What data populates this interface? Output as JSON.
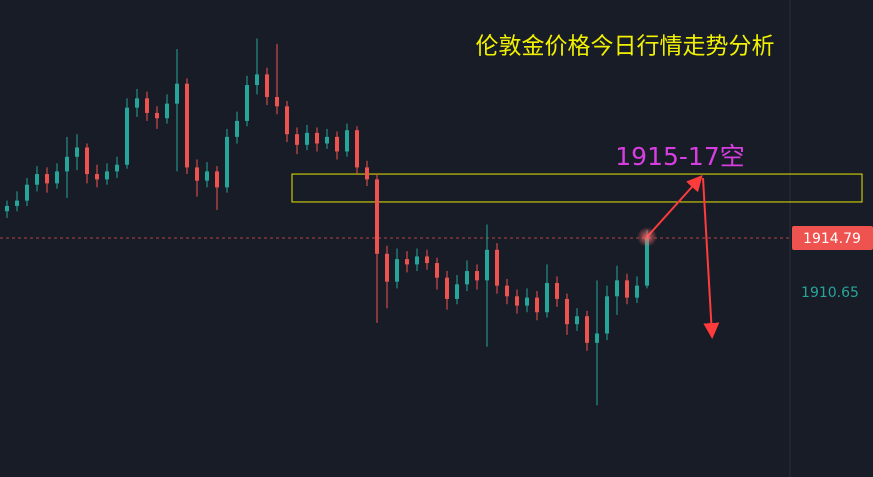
{
  "chart_data": {
    "type": "candlestick",
    "title": "伦敦金价格今日行情走势分析",
    "annotation": "1915-17空",
    "up_color": "#26a69a",
    "down_color": "#ef5350",
    "ylim": [
      1896.8,
      1932.7
    ],
    "last_price": 1914.79,
    "ref_price": 1910.65,
    "zone": [
      1917.5,
      1919.6
    ],
    "open": [
      1916.8,
      1917.2,
      1917.6,
      1918.8,
      1919.6,
      1918.9,
      1919.8,
      1920.9,
      1921.6,
      1919.6,
      1919.2,
      1919.8,
      1920.3,
      1924.6,
      1925.3,
      1924.2,
      1923.8,
      1924.9,
      1926.4,
      1920.1,
      1919.1,
      1919.8,
      1918.6,
      1922.4,
      1923.6,
      1926.3,
      1927.1,
      1925.4,
      1924.7,
      1922.6,
      1921.8,
      1922.7,
      1921.9,
      1922.4,
      1921.3,
      1922.9,
      1920.1,
      1919.2,
      1913.6,
      1911.5,
      1913.2,
      1912.8,
      1913.4,
      1912.9,
      1911.8,
      1910.2,
      1911.3,
      1912.3,
      1911.6,
      1913.9,
      1911.2,
      1910.4,
      1909.7,
      1910.3,
      1909.2,
      1911.4,
      1910.2,
      1908.3,
      1908.9,
      1906.9,
      1907.6,
      1910.4,
      1911.6,
      1910.3,
      1911.2
    ],
    "high": [
      1917.6,
      1918.3,
      1919.3,
      1920.2,
      1920.1,
      1920.4,
      1922.4,
      1922.6,
      1921.9,
      1920.3,
      1920.4,
      1920.9,
      1925.3,
      1926.0,
      1925.8,
      1924.7,
      1925.6,
      1929.0,
      1926.8,
      1920.7,
      1920.5,
      1920.2,
      1923.0,
      1924.3,
      1927.0,
      1929.8,
      1927.6,
      1929.4,
      1925.1,
      1923.1,
      1923.3,
      1923.1,
      1923.0,
      1922.8,
      1923.4,
      1923.2,
      1920.6,
      1919.6,
      1914.2,
      1914.0,
      1913.8,
      1914.0,
      1913.9,
      1913.3,
      1912.3,
      1912.0,
      1913.1,
      1912.8,
      1915.8,
      1914.4,
      1911.7,
      1910.9,
      1911.0,
      1910.8,
      1912.8,
      1911.9,
      1910.6,
      1909.5,
      1909.3,
      1911.6,
      1911.2,
      1912.7,
      1912.1,
      1911.9,
      1915.4
    ],
    "low": [
      1916.3,
      1916.8,
      1917.2,
      1918.3,
      1918.2,
      1918.5,
      1917.8,
      1919.9,
      1918.9,
      1918.6,
      1918.8,
      1919.3,
      1920.0,
      1923.9,
      1923.6,
      1923.0,
      1923.4,
      1919.8,
      1919.6,
      1917.9,
      1918.6,
      1916.9,
      1918.2,
      1921.9,
      1923.2,
      1925.6,
      1924.8,
      1924.1,
      1922.0,
      1921.1,
      1921.4,
      1921.3,
      1921.5,
      1920.7,
      1920.9,
      1919.6,
      1918.7,
      1908.4,
      1909.5,
      1911.0,
      1912.2,
      1912.3,
      1912.4,
      1910.9,
      1909.4,
      1909.8,
      1910.8,
      1910.9,
      1906.6,
      1910.6,
      1909.8,
      1909.1,
      1909.2,
      1908.6,
      1908.8,
      1909.6,
      1907.5,
      1907.8,
      1906.3,
      1902.2,
      1907.1,
      1909.0,
      1909.8,
      1909.9,
      1911.0
    ],
    "close": [
      1917.2,
      1917.6,
      1918.8,
      1919.6,
      1918.9,
      1919.8,
      1920.9,
      1921.6,
      1919.6,
      1919.2,
      1919.8,
      1920.3,
      1924.6,
      1925.3,
      1924.2,
      1923.8,
      1924.9,
      1926.4,
      1920.1,
      1919.1,
      1919.8,
      1918.6,
      1922.4,
      1923.6,
      1926.3,
      1927.1,
      1925.4,
      1924.7,
      1922.6,
      1921.8,
      1922.7,
      1921.9,
      1922.4,
      1921.3,
      1922.9,
      1920.1,
      1919.2,
      1913.6,
      1911.5,
      1913.2,
      1912.8,
      1913.4,
      1912.9,
      1911.8,
      1910.2,
      1911.3,
      1912.3,
      1911.6,
      1913.9,
      1911.2,
      1910.4,
      1909.7,
      1910.3,
      1909.2,
      1911.4,
      1910.2,
      1908.3,
      1908.9,
      1906.9,
      1907.6,
      1910.4,
      1911.6,
      1910.3,
      1911.2,
      1914.79
    ]
  }
}
